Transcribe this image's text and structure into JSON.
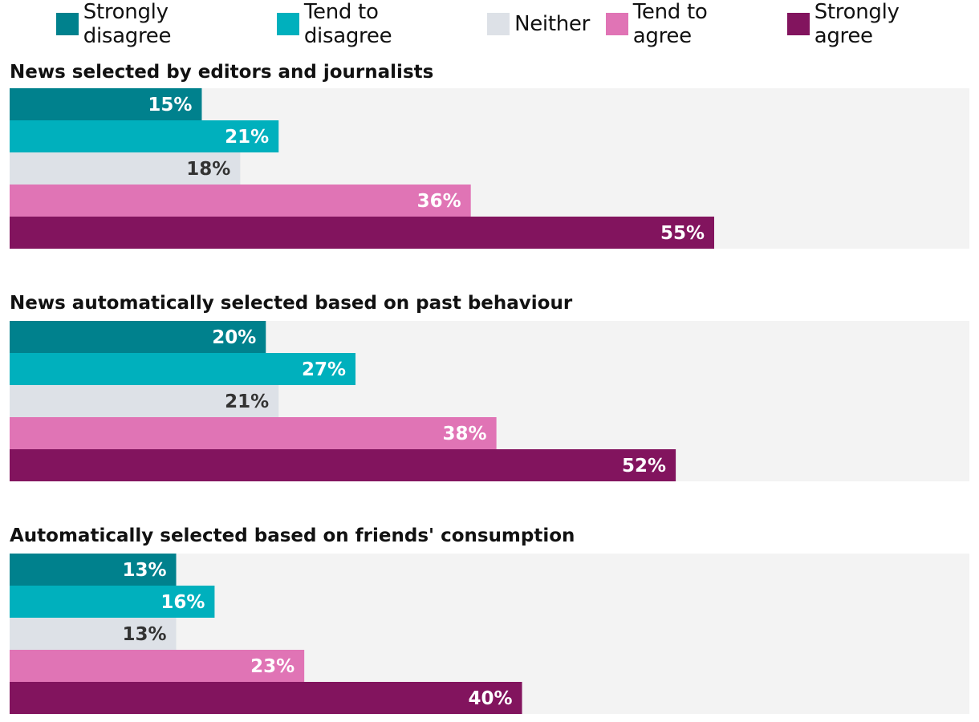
{
  "colors": {
    "track": "#f3f3f3",
    "label_light": "#ffffff",
    "label_dark": "#333333"
  },
  "chart_data": {
    "type": "bar",
    "orientation": "horizontal",
    "value_format": "percent",
    "xlim": [
      0,
      75
    ],
    "legend_position": "top",
    "series": [
      {
        "name": "Strongly disagree",
        "color": "#00818d"
      },
      {
        "name": "Tend to disagree",
        "color": "#00b0bd"
      },
      {
        "name": "Neither",
        "color": "#dde1e7"
      },
      {
        "name": "Tend to agree",
        "color": "#e074b5"
      },
      {
        "name": "Strongly agree",
        "color": "#82145e"
      }
    ],
    "panels": [
      {
        "title": "News selected by editors and journalists",
        "values": [
          15,
          21,
          18,
          36,
          55
        ]
      },
      {
        "title": "News automatically selected based on past behaviour",
        "values": [
          20,
          27,
          21,
          38,
          52
        ]
      },
      {
        "title": "Automatically selected based on friends' consumption",
        "values": [
          13,
          16,
          13,
          23,
          40
        ]
      }
    ]
  }
}
